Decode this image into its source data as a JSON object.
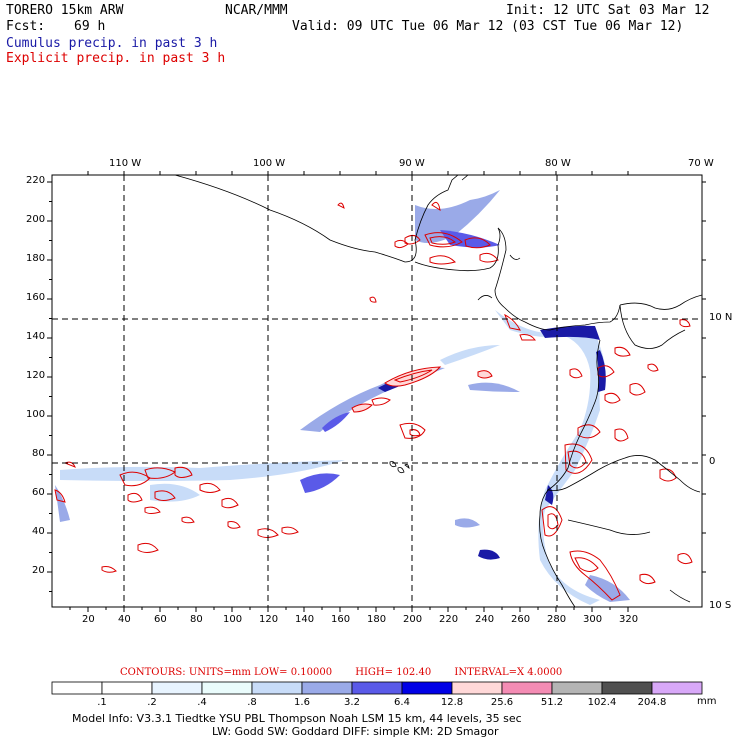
{
  "header": {
    "model": "TORERO  15km ARW",
    "org": "NCAR/MMM",
    "init": "Init: 12 UTC Sat 03 Mar 12",
    "fcst_label": "Fcst:",
    "fcst_value": "69 h",
    "valid": "Valid: 09 UTC Tue 06 Mar 12 (03 CST Tue 06 Mar 12)",
    "legend_cumulus": "Cumulus precip. in past 3 h",
    "legend_explicit": "Explicit precip. in past 3 h"
  },
  "colors": {
    "cumulus": "#1a1aa6",
    "explicit": "#dd0000",
    "coast": "#000000"
  },
  "axes": {
    "lon_labels": [
      "110 W",
      "100 W",
      "90 W",
      "80 W",
      "70 W"
    ],
    "lat_labels": [
      "10 N",
      "0",
      "10 S"
    ],
    "y_ticks": [
      "220",
      "200",
      "180",
      "160",
      "140",
      "120",
      "100",
      "80",
      "60",
      "40",
      "20"
    ],
    "x_ticks": [
      "20",
      "40",
      "60",
      "80",
      "100",
      "120",
      "140",
      "160",
      "180",
      "200",
      "220",
      "240",
      "260",
      "280",
      "300",
      "320"
    ]
  },
  "contours_note": {
    "label": "CONTOURS:",
    "units": "UNITS=mm",
    "low": "LOW= 0.10000",
    "high": "HIGH= 102.40",
    "interval": "INTERVAL=X  4.0000"
  },
  "colorbar": {
    "ticks": [
      ".1",
      ".2",
      ".4",
      ".8",
      "1.6",
      "3.2",
      "6.4",
      "12.8",
      "25.6",
      "51.2",
      "102.4",
      "204.8"
    ],
    "colors": [
      "#ffffff",
      "#ffffff",
      "#e8f4ff",
      "#eafcfc",
      "#c8dcf8",
      "#9aaae8",
      "#5a5ae8",
      "#0000e6",
      "#ffd8d8",
      "#f48cb4",
      "#b4b4b4",
      "#505050",
      "#d8a8f8"
    ],
    "unit": "mm"
  },
  "footer": {
    "line1": "Model Info: V3.3.1    Tiedtke YSU PBL  Thompson     Noah LSM  15 km,   44 levels,   35 sec",
    "line2": "LW: Godd SW: Goddard DIFF: simple KM: 2D Smagor"
  }
}
